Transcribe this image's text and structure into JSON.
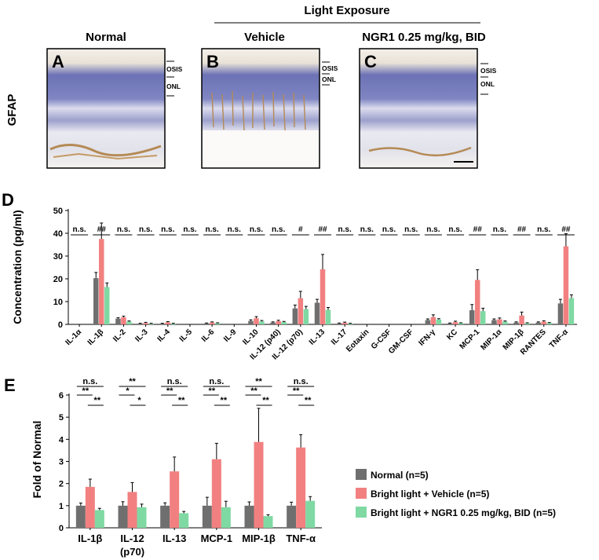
{
  "colors": {
    "normal": "#6f6f6f",
    "vehicle": "#f28080",
    "ngr1": "#7fd9a3",
    "error_bar": "#000000",
    "tissue_stain": "#b48a55",
    "nuclei": "#5a62a8"
  },
  "panel_top": {
    "heading": "Light Exposure",
    "row_label": "GFAP",
    "scale_bar": true,
    "columns": [
      {
        "title": "Normal",
        "letter": "A",
        "layer_labels": [
          "OSIS",
          "ONL"
        ]
      },
      {
        "title": "Vehicle",
        "letter": "B",
        "layer_labels": [
          "OSIS",
          "ONL"
        ]
      },
      {
        "title": "NGR1 0.25 mg/kg, BID",
        "letter": "C",
        "layer_labels": [
          "OSIS",
          "ONL"
        ]
      }
    ]
  },
  "legend": [
    {
      "key": "normal",
      "label": "Normal (n=5)"
    },
    {
      "key": "vehicle",
      "label": "Bright light + Vehicle (n=5)"
    },
    {
      "key": "ngr1",
      "label": "Bright light + NGR1 0.25 mg/kg, BID (n=5)"
    }
  ],
  "chart_data": [
    {
      "panel": "D",
      "type": "bar",
      "title": "",
      "xlabel": "",
      "ylabel": "Concentration (pg/ml)",
      "ylim": [
        0,
        50
      ],
      "yticks": [
        0,
        10,
        20,
        30,
        40,
        50
      ],
      "grid": false,
      "categories": [
        "IL-1α",
        "IL-1β",
        "IL-2",
        "IL-3",
        "IL-4",
        "IL-5",
        "IL-6",
        "IL-9",
        "IL-10",
        "IL-12 (p40)",
        "IL-12 (p70)",
        "IL-13",
        "IL-17",
        "Eotaxin",
        "G-CSF",
        "GM-CSF",
        "IFN-γ",
        "KC",
        "MCP-1",
        "MIP-1α",
        "MIP-1β",
        "RANTES",
        "TNF-α"
      ],
      "series": [
        {
          "name": "Normal (n=5)",
          "key": "normal",
          "values": [
            0,
            20.3,
            2.5,
            0.3,
            0.3,
            0,
            0.4,
            0,
            1.5,
            0.8,
            7,
            9.5,
            0.4,
            0,
            0,
            0,
            1.9,
            0.4,
            6.2,
            1.9,
            0.8,
            0.8,
            9.2
          ],
          "errors": [
            0,
            2.5,
            0.4,
            0.2,
            0.2,
            0,
            0.2,
            0,
            0.5,
            0.3,
            1.5,
            1.5,
            0.2,
            0,
            0,
            0,
            0.5,
            0.2,
            2.5,
            0.5,
            0.3,
            0.3,
            1.8
          ]
        },
        {
          "name": "Bright light + Vehicle (n=5)",
          "key": "vehicle",
          "values": [
            0,
            37.5,
            3.1,
            0.6,
            0.9,
            0,
            0.8,
            0,
            2.7,
            1.4,
            11.5,
            24.2,
            0.7,
            0,
            0,
            0,
            3.2,
            1,
            19.5,
            2.2,
            3.9,
            1.2,
            34.3
          ],
          "errors": [
            0,
            7,
            0.5,
            0.3,
            0.3,
            0,
            0.3,
            0,
            0.7,
            0.4,
            3,
            6.5,
            0.3,
            0,
            0,
            0,
            1,
            0.4,
            4.5,
            0.6,
            1.5,
            0.4,
            5.5
          ]
        },
        {
          "name": "Bright light + NGR1 0.25 mg/kg, BID (n=5)",
          "key": "ngr1",
          "values": [
            0,
            16.4,
            1.2,
            0.3,
            0.3,
            0,
            0.5,
            0,
            1.3,
            1,
            6.7,
            6.4,
            0.3,
            0,
            0,
            0,
            2.1,
            0.5,
            5.8,
            1.2,
            0.5,
            0.6,
            11.5
          ],
          "errors": [
            0,
            1.8,
            0.3,
            0.2,
            0.2,
            0,
            0.2,
            0,
            0.4,
            0.3,
            1.2,
            1,
            0.2,
            0,
            0,
            0,
            0.4,
            0.2,
            1.3,
            0.3,
            0.2,
            0.2,
            1.5
          ]
        }
      ],
      "annotations": [
        "n.s.",
        "##",
        "n.s.",
        "n.s.",
        "n.s.",
        "n.s.",
        "n.s.",
        "n.s.",
        "n.s.",
        "n.s.",
        "#",
        "##",
        "n.s.",
        "n.s.",
        "n.s.",
        "n.s.",
        "n.s.",
        "n.s.",
        "##",
        "n.s.",
        "##",
        "n.s.",
        "##"
      ]
    },
    {
      "panel": "E",
      "type": "bar",
      "title": "",
      "xlabel": "",
      "ylabel": "Fold of Normal",
      "ylim": [
        0,
        6
      ],
      "yticks": [
        0,
        1,
        2,
        3,
        4,
        5,
        6
      ],
      "grid": false,
      "categories": [
        "IL-1β",
        "IL-12\n(p70)",
        "IL-13",
        "MCP-1",
        "MIP-1β",
        "TNF-α"
      ],
      "series": [
        {
          "name": "Normal (n=5)",
          "key": "normal",
          "values": [
            1,
            1,
            1,
            1,
            1,
            1
          ],
          "errors": [
            0.12,
            0.18,
            0.13,
            0.38,
            0.17,
            0.16
          ]
        },
        {
          "name": "Bright light + Vehicle (n=5)",
          "key": "vehicle",
          "values": [
            1.85,
            1.62,
            2.55,
            3.1,
            3.88,
            3.63
          ],
          "errors": [
            0.35,
            0.42,
            0.65,
            0.72,
            1.52,
            0.58
          ]
        },
        {
          "name": "Bright light + NGR1 0.25 mg/kg, BID (n=5)",
          "key": "ngr1",
          "values": [
            0.8,
            0.93,
            0.66,
            0.93,
            0.53,
            1.22
          ],
          "errors": [
            0.08,
            0.14,
            0.08,
            0.27,
            0.06,
            0.19
          ]
        }
      ],
      "significance": [
        {
          "top": "n.s.",
          "left": "**",
          "right": "**"
        },
        {
          "top": "**",
          "left": "*",
          "right": "*"
        },
        {
          "top": "n.s.",
          "left": "**",
          "right": "**"
        },
        {
          "top": "n.s.",
          "left": "**",
          "right": "**"
        },
        {
          "top": "**",
          "left": "**",
          "right": "**"
        },
        {
          "top": "n.s.",
          "left": "**",
          "right": "**"
        }
      ]
    }
  ],
  "panel_labels": {
    "d": "D",
    "e": "E"
  }
}
